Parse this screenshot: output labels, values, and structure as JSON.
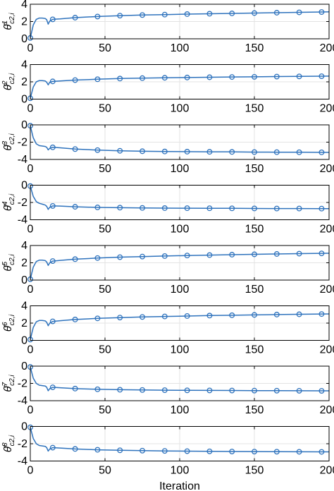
{
  "chart_data": {
    "type": "line",
    "xlabel": "Iteration",
    "xlim": [
      0,
      200
    ],
    "xticks": [
      0,
      50,
      100,
      150,
      200
    ],
    "xtick_labels": [
      "0",
      "50",
      "100",
      "150",
      "200"
    ],
    "grid": true,
    "line_color": "#2f73bd",
    "marker": "circle",
    "marker_x": [
      0,
      15,
      30,
      45,
      60,
      75,
      90,
      105,
      120,
      135,
      150,
      165,
      180,
      195
    ],
    "panels": [
      {
        "ylabel": {
          "base": "θ̂",
          "sup": "1",
          "sub": "c2,i"
        },
        "ylim": [
          0,
          4
        ],
        "yticks": [
          0,
          2,
          4
        ],
        "ytick_labels": [
          "0",
          "2",
          "4"
        ],
        "x": [
          0,
          2,
          4,
          6,
          8,
          10,
          11,
          12,
          13,
          15,
          20,
          30,
          45,
          60,
          75,
          90,
          105,
          120,
          135,
          150,
          165,
          180,
          195,
          200
        ],
        "y": [
          0.1,
          1.6,
          2.25,
          2.4,
          2.4,
          2.35,
          2.2,
          1.7,
          2.05,
          2.25,
          2.3,
          2.45,
          2.58,
          2.68,
          2.75,
          2.8,
          2.86,
          2.9,
          2.94,
          2.98,
          3.02,
          3.06,
          3.1,
          3.12
        ]
      },
      {
        "ylabel": {
          "base": "θ̂",
          "sup": "2",
          "sub": "c2,i"
        },
        "ylim": [
          0,
          4
        ],
        "yticks": [
          0,
          2,
          4
        ],
        "ytick_labels": [
          "0",
          "2",
          "4"
        ],
        "x": [
          0,
          2,
          4,
          6,
          8,
          10,
          11,
          12,
          13,
          15,
          20,
          30,
          45,
          60,
          75,
          90,
          105,
          120,
          135,
          150,
          165,
          180,
          195,
          200
        ],
        "y": [
          0.1,
          1.4,
          2.0,
          2.15,
          2.15,
          2.1,
          1.95,
          1.65,
          1.95,
          2.05,
          2.1,
          2.2,
          2.3,
          2.38,
          2.43,
          2.47,
          2.5,
          2.53,
          2.56,
          2.58,
          2.61,
          2.63,
          2.65,
          2.66
        ]
      },
      {
        "ylabel": {
          "base": "θ̂",
          "sup": "3",
          "sub": "c2,i"
        },
        "ylim": [
          -4,
          0
        ],
        "yticks": [
          -4,
          -2,
          0
        ],
        "ytick_labels": [
          "-4",
          "-2",
          "0"
        ],
        "x": [
          0,
          2,
          4,
          6,
          8,
          10,
          11,
          12,
          13,
          15,
          20,
          30,
          45,
          60,
          75,
          90,
          105,
          120,
          135,
          150,
          165,
          180,
          195,
          200
        ],
        "y": [
          -0.1,
          -1.5,
          -2.2,
          -2.4,
          -2.45,
          -2.5,
          -2.6,
          -2.9,
          -2.7,
          -2.6,
          -2.65,
          -2.8,
          -2.92,
          -3.0,
          -3.05,
          -3.08,
          -3.1,
          -3.12,
          -3.13,
          -3.15,
          -3.16,
          -3.17,
          -3.18,
          -3.18
        ]
      },
      {
        "ylabel": {
          "base": "θ̂",
          "sup": "4",
          "sub": "c2,i"
        },
        "ylim": [
          -4,
          0
        ],
        "yticks": [
          -4,
          -2,
          0
        ],
        "ytick_labels": [
          "-4",
          "-2",
          "0"
        ],
        "x": [
          0,
          2,
          4,
          6,
          8,
          10,
          11,
          12,
          13,
          15,
          20,
          30,
          45,
          60,
          75,
          90,
          105,
          120,
          135,
          150,
          165,
          180,
          195,
          200
        ],
        "y": [
          -0.1,
          -1.3,
          -1.9,
          -2.1,
          -2.2,
          -2.3,
          -2.45,
          -2.8,
          -2.55,
          -2.4,
          -2.42,
          -2.5,
          -2.57,
          -2.6,
          -2.63,
          -2.65,
          -2.66,
          -2.67,
          -2.68,
          -2.69,
          -2.7,
          -2.7,
          -2.71,
          -2.71
        ]
      },
      {
        "ylabel": {
          "base": "θ̂",
          "sup": "5",
          "sub": "c2,i"
        },
        "ylim": [
          0,
          4
        ],
        "yticks": [
          0,
          2,
          4
        ],
        "ytick_labels": [
          "0",
          "2",
          "4"
        ],
        "x": [
          0,
          2,
          4,
          6,
          8,
          10,
          11,
          12,
          13,
          15,
          20,
          30,
          45,
          60,
          75,
          90,
          105,
          120,
          135,
          150,
          165,
          180,
          195,
          200
        ],
        "y": [
          0.1,
          1.5,
          2.15,
          2.3,
          2.3,
          2.25,
          2.1,
          1.7,
          2.0,
          2.2,
          2.28,
          2.42,
          2.55,
          2.65,
          2.72,
          2.78,
          2.84,
          2.89,
          2.94,
          2.98,
          3.02,
          3.06,
          3.09,
          3.1
        ]
      },
      {
        "ylabel": {
          "base": "θ̂",
          "sup": "6",
          "sub": "c2,i"
        },
        "ylim": [
          0,
          4
        ],
        "yticks": [
          0,
          2,
          4
        ],
        "ytick_labels": [
          "0",
          "2",
          "4"
        ],
        "x": [
          0,
          2,
          4,
          6,
          8,
          10,
          11,
          12,
          13,
          15,
          20,
          30,
          45,
          60,
          75,
          90,
          105,
          120,
          135,
          150,
          165,
          180,
          195,
          200
        ],
        "y": [
          0.1,
          1.5,
          2.15,
          2.3,
          2.3,
          2.25,
          2.1,
          1.7,
          2.0,
          2.2,
          2.28,
          2.42,
          2.55,
          2.64,
          2.71,
          2.77,
          2.82,
          2.87,
          2.91,
          2.95,
          2.99,
          3.02,
          3.05,
          3.06
        ]
      },
      {
        "ylabel": {
          "base": "θ̂",
          "sup": "7",
          "sub": "c2,i"
        },
        "ylim": [
          -4,
          0
        ],
        "yticks": [
          -4,
          -2,
          0
        ],
        "ytick_labels": [
          "-4",
          "-2",
          "0"
        ],
        "x": [
          0,
          2,
          4,
          6,
          8,
          10,
          11,
          12,
          13,
          15,
          20,
          30,
          45,
          60,
          75,
          90,
          105,
          120,
          135,
          150,
          165,
          180,
          195,
          200
        ],
        "y": [
          -0.1,
          -1.4,
          -2.0,
          -2.2,
          -2.25,
          -2.3,
          -2.45,
          -2.85,
          -2.6,
          -2.45,
          -2.5,
          -2.6,
          -2.68,
          -2.73,
          -2.76,
          -2.78,
          -2.8,
          -2.81,
          -2.82,
          -2.83,
          -2.84,
          -2.85,
          -2.86,
          -2.86
        ]
      },
      {
        "ylabel": {
          "base": "θ̂",
          "sup": "8",
          "sub": "c2,i"
        },
        "ylim": [
          -4,
          0
        ],
        "yticks": [
          -4,
          -2,
          0
        ],
        "ytick_labels": [
          "-4",
          "-2",
          "0"
        ],
        "x": [
          0,
          2,
          4,
          6,
          8,
          10,
          11,
          12,
          13,
          15,
          20,
          30,
          45,
          60,
          75,
          90,
          105,
          120,
          135,
          150,
          165,
          180,
          195,
          200
        ],
        "y": [
          -0.1,
          -1.4,
          -2.0,
          -2.2,
          -2.25,
          -2.3,
          -2.45,
          -2.85,
          -2.6,
          -2.45,
          -2.5,
          -2.6,
          -2.7,
          -2.76,
          -2.8,
          -2.83,
          -2.86,
          -2.88,
          -2.9,
          -2.91,
          -2.92,
          -2.93,
          -2.94,
          -2.94
        ]
      }
    ]
  }
}
